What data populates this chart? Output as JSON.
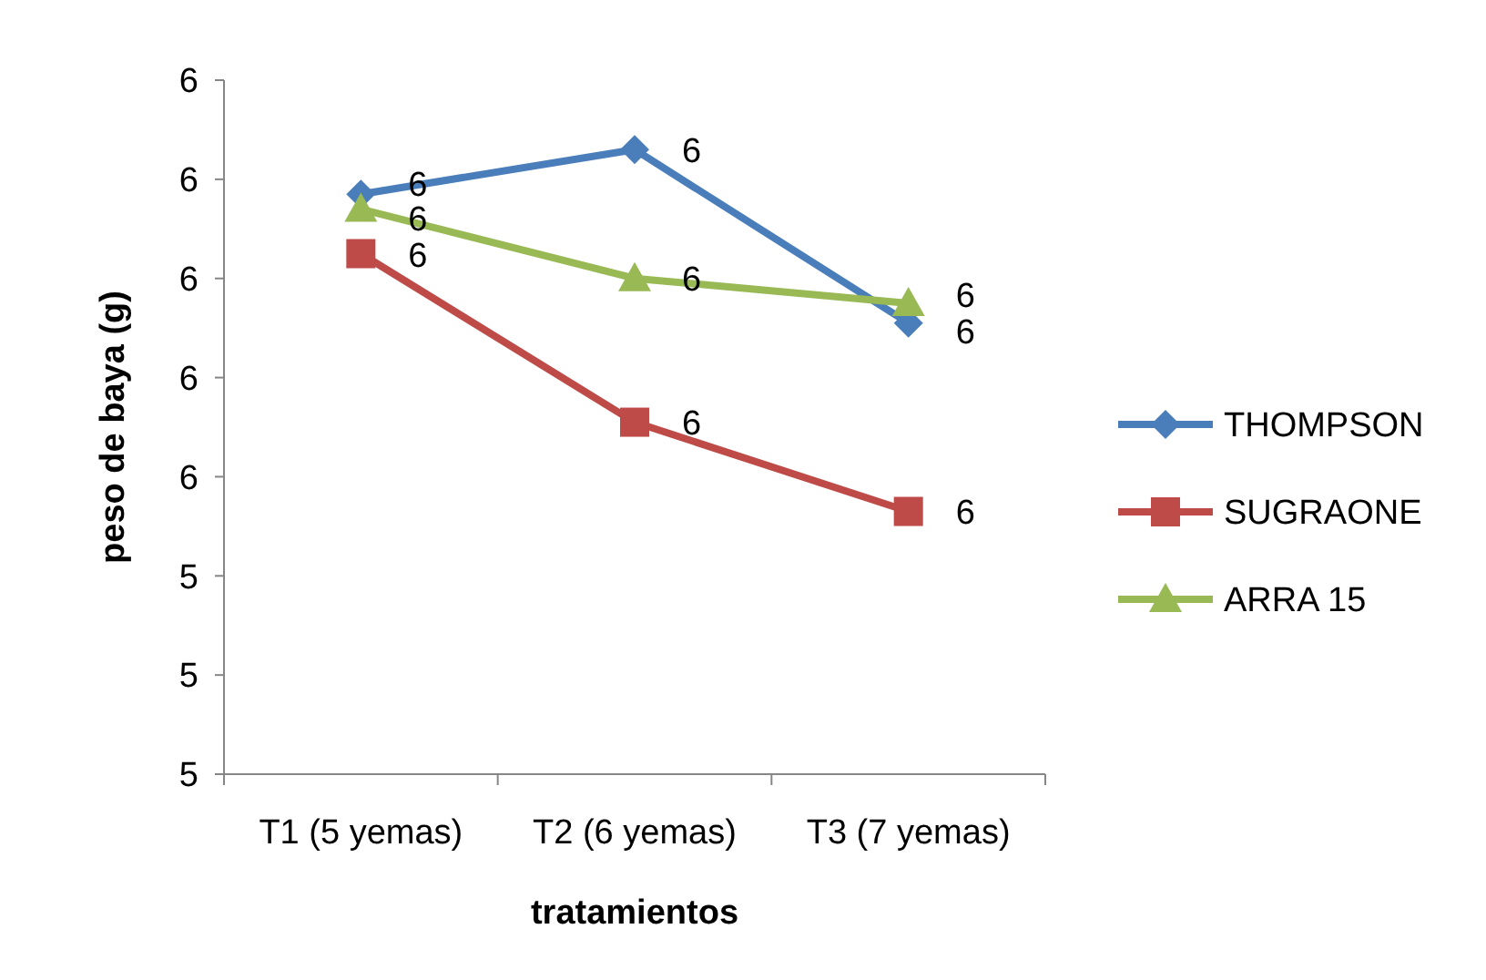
{
  "chart_data": {
    "type": "line",
    "xlabel": "tratamientos",
    "ylabel": "peso de baya (g)",
    "categories": [
      "T1 (5 yemas)",
      "T2 (6 yemas)",
      "T3 (7 yemas)"
    ],
    "series": [
      {
        "name": "THOMPSON",
        "color": "#4a7ebb",
        "marker": "diamond",
        "values": [
          6.17,
          6.26,
          5.91
        ],
        "value_labels": [
          "6",
          "6",
          "6"
        ]
      },
      {
        "name": "SUGRAONE",
        "color": "#be4b48",
        "marker": "square",
        "values": [
          6.05,
          5.71,
          5.53
        ],
        "value_labels": [
          "6",
          "6",
          "6"
        ]
      },
      {
        "name": "ARRA 15",
        "color": "#98b954",
        "marker": "triangle",
        "values": [
          6.14,
          6.0,
          5.95
        ],
        "value_labels": [
          "6",
          "6",
          "6"
        ]
      }
    ],
    "ylim": [
      5.0,
      6.4
    ],
    "yticks": [
      {
        "value": 5.0,
        "label": "5"
      },
      {
        "value": 5.2,
        "label": "5"
      },
      {
        "value": 5.4,
        "label": "5"
      },
      {
        "value": 5.6,
        "label": "6"
      },
      {
        "value": 5.8,
        "label": "6"
      },
      {
        "value": 6.0,
        "label": "6"
      },
      {
        "value": 6.2,
        "label": "6"
      },
      {
        "value": 6.4,
        "label": "6"
      }
    ],
    "legend": "right",
    "grid": false
  }
}
